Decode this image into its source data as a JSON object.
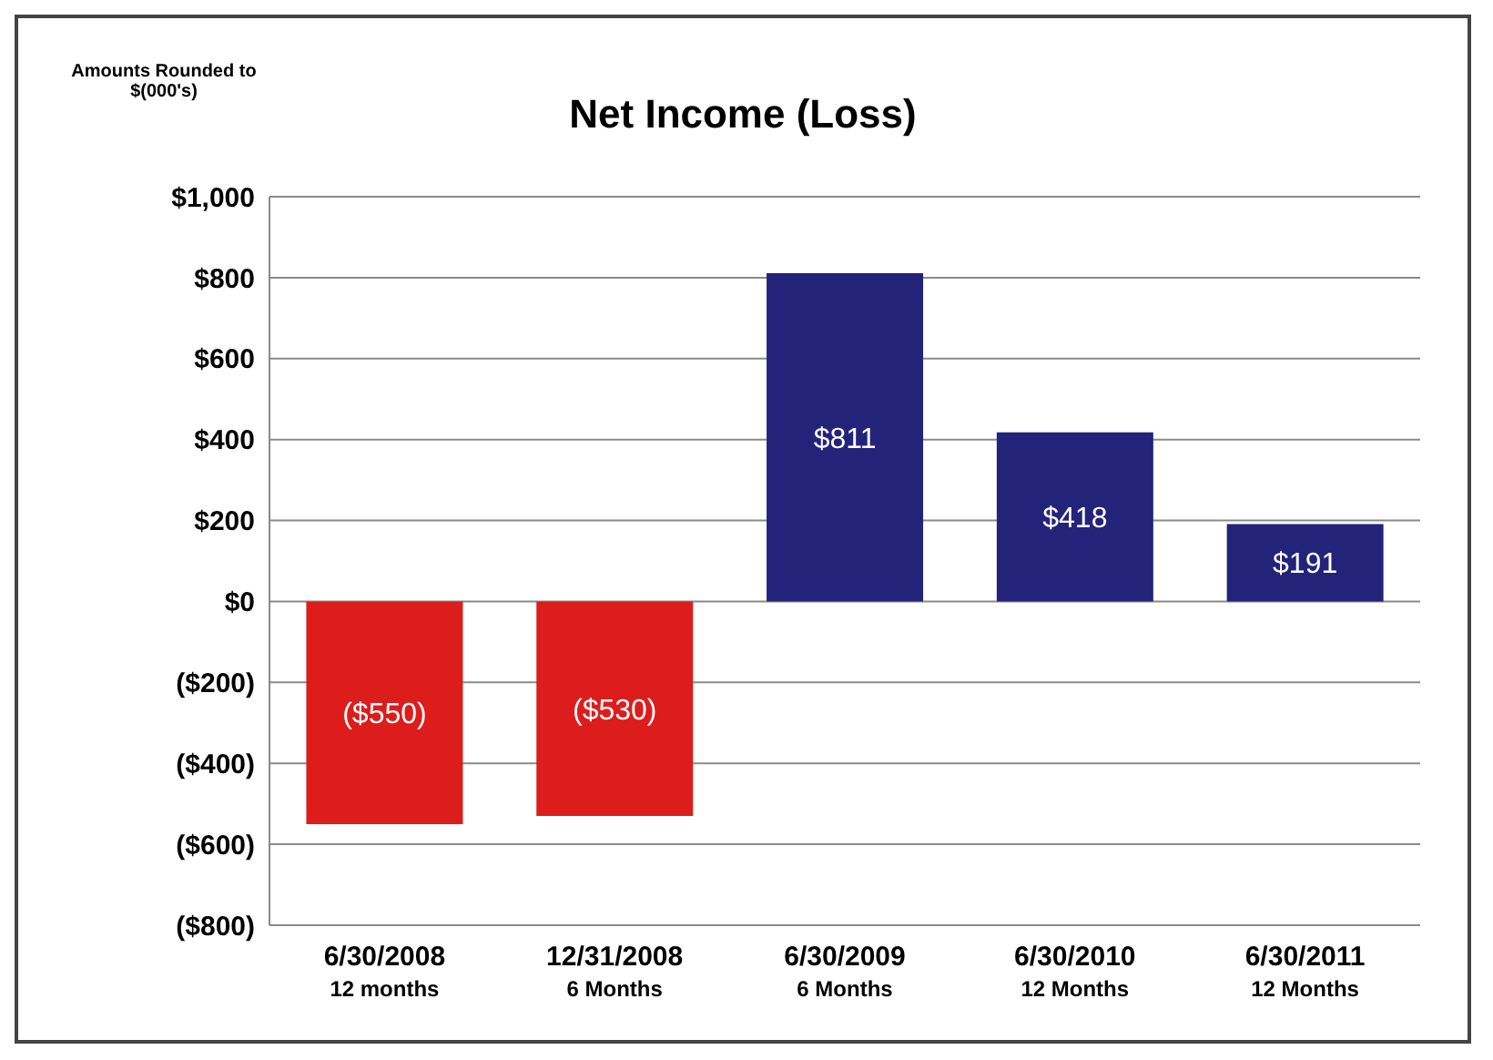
{
  "chart_data": {
    "type": "bar",
    "title": "Net Income (Loss)",
    "annotations": [
      "Amounts Rounded to\n$(000's)"
    ],
    "categories": [
      "6/30/2008\n12 months",
      "12/31/2008\n6 Months",
      "6/30/2009\n6 Months",
      "6/30/2010\n12 Months",
      "6/30/2011\n12 Months"
    ],
    "values": [
      -550,
      -530,
      811,
      418,
      191
    ],
    "colors": [
      "#dd1c1c",
      "#dd1c1c",
      "#24237a",
      "#24237a",
      "#24237a"
    ],
    "value_labels": [
      "($550)",
      "($530)",
      "$811",
      "$418",
      "$191"
    ],
    "ylim": [
      -800,
      1000
    ],
    "yticks": [
      {
        "value": -800,
        "label": "($800)"
      },
      {
        "value": -600,
        "label": "($600)"
      },
      {
        "value": -400,
        "label": "($400)"
      },
      {
        "value": -200,
        "label": "($200)"
      },
      {
        "value": 0,
        "label": "$0"
      },
      {
        "value": 200,
        "label": "$200"
      },
      {
        "value": 400,
        "label": "$400"
      },
      {
        "value": 600,
        "label": "$600"
      },
      {
        "value": 800,
        "label": "$800"
      },
      {
        "value": 1000,
        "label": "$1,000"
      }
    ],
    "grid": "y"
  }
}
